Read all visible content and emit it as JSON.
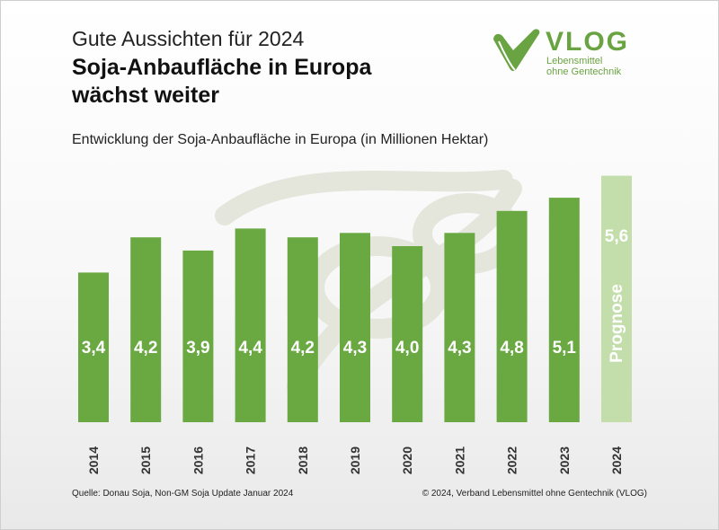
{
  "header": {
    "kicker": "Gute Aussichten für 2024",
    "headline_line1": "Soja-Anbaufläche in Europa",
    "headline_line2": "wächst weiter",
    "subtitle": "Entwicklung der Soja-Anbaufläche in Europa (in Millionen Hektar)"
  },
  "logo": {
    "name": "VLOG",
    "tagline_line1": "Lebensmittel",
    "tagline_line2": "ohne Gentechnik",
    "icon": "vlog-check-leaf-logo",
    "color": "#6aa342"
  },
  "chart_data": {
    "type": "bar",
    "categories": [
      "2014",
      "2015",
      "2016",
      "2017",
      "2018",
      "2019",
      "2020",
      "2021",
      "2022",
      "2023",
      "2024"
    ],
    "values": [
      3.4,
      4.2,
      3.9,
      4.4,
      4.2,
      4.3,
      4.0,
      4.3,
      4.8,
      5.1,
      5.6
    ],
    "value_labels": [
      "3,4",
      "4,2",
      "3,9",
      "4,4",
      "4,2",
      "4,3",
      "4,0",
      "4,3",
      "4,8",
      "5,1",
      "5,6"
    ],
    "forecast_category": "2024",
    "forecast_label": "Prognose",
    "colors": {
      "bar": "#6aa842",
      "forecast": "#c3deaa",
      "label": "#ffffff"
    },
    "grid": false,
    "title": "Entwicklung der Soja-Anbaufläche in Europa (in Millionen Hektar)"
  },
  "footer": {
    "source": "Quelle: Donau Soja, Non-GM Soja Update Januar 2024",
    "copyright": "© 2024, Verband Lebensmittel ohne Gentechnik (VLOG)"
  }
}
